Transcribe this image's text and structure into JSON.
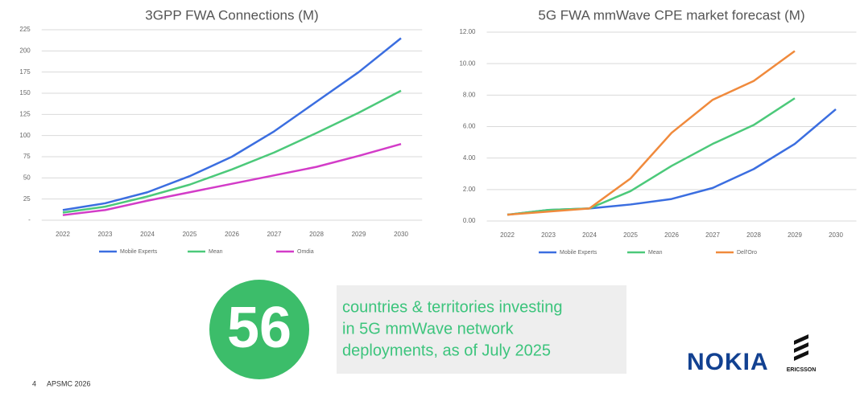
{
  "chart_data": [
    {
      "type": "line",
      "title": "3GPP FWA Connections (M)",
      "categories": [
        "2022",
        "2023",
        "2024",
        "2025",
        "2026",
        "2027",
        "2028",
        "2029",
        "2030"
      ],
      "series": [
        {
          "name": "Mobile Experts",
          "color": "#3b6ee0",
          "values": [
            12,
            20,
            33,
            52,
            75,
            105,
            140,
            175,
            215
          ]
        },
        {
          "name": "Mean",
          "color": "#4cc97a",
          "values": [
            9,
            16,
            28,
            42,
            60,
            80,
            103,
            127,
            153
          ]
        },
        {
          "name": "Omdia",
          "color": "#d33cc8",
          "values": [
            6,
            12,
            23,
            33,
            43,
            53,
            63,
            76,
            90
          ]
        }
      ],
      "ylim": [
        0,
        225
      ],
      "yticks": [
        {
          "value": 0,
          "label": "-"
        },
        25,
        50,
        75,
        100,
        125,
        150,
        175,
        200,
        225
      ],
      "grid": true,
      "legend": "bottom"
    },
    {
      "type": "line",
      "title": "5G FWA mmWave CPE market forecast (M)",
      "categories": [
        "2022",
        "2023",
        "2024",
        "2025",
        "2026",
        "2027",
        "2028",
        "2029",
        "2030"
      ],
      "series": [
        {
          "name": "Mobile Experts",
          "color": "#3b6ee0",
          "values": [
            0.4,
            0.7,
            0.8,
            1.05,
            1.4,
            2.1,
            3.3,
            4.9,
            7.1
          ]
        },
        {
          "name": "Mean",
          "color": "#4cc97a",
          "values": [
            0.4,
            0.7,
            0.8,
            1.9,
            3.5,
            4.9,
            6.1,
            7.8,
            null
          ]
        },
        {
          "name": "Dell'Oro",
          "color": "#f08a3c",
          "values": [
            0.4,
            0.6,
            0.8,
            2.7,
            5.6,
            7.7,
            8.9,
            10.8,
            null
          ]
        }
      ],
      "ylim": [
        0,
        12
      ],
      "yticks": [
        {
          "value": 0,
          "label": "0.00"
        },
        {
          "value": 2,
          "label": "2.00"
        },
        {
          "value": 4,
          "label": "4.00"
        },
        {
          "value": 6,
          "label": "6.00"
        },
        {
          "value": 8,
          "label": "8.00"
        },
        {
          "value": 10,
          "label": "10.00"
        },
        {
          "value": 12,
          "label": "12.00"
        }
      ],
      "grid": true,
      "legend": "bottom"
    }
  ],
  "callout": {
    "number": "56",
    "text": [
      "countries & territories investing",
      "in 5G mmWave network",
      "deployments, as of July 2025"
    ]
  },
  "footer": {
    "page": "4",
    "event": "APSMC 2026"
  },
  "logos": [
    "NOKIA",
    "ERICSSON"
  ]
}
